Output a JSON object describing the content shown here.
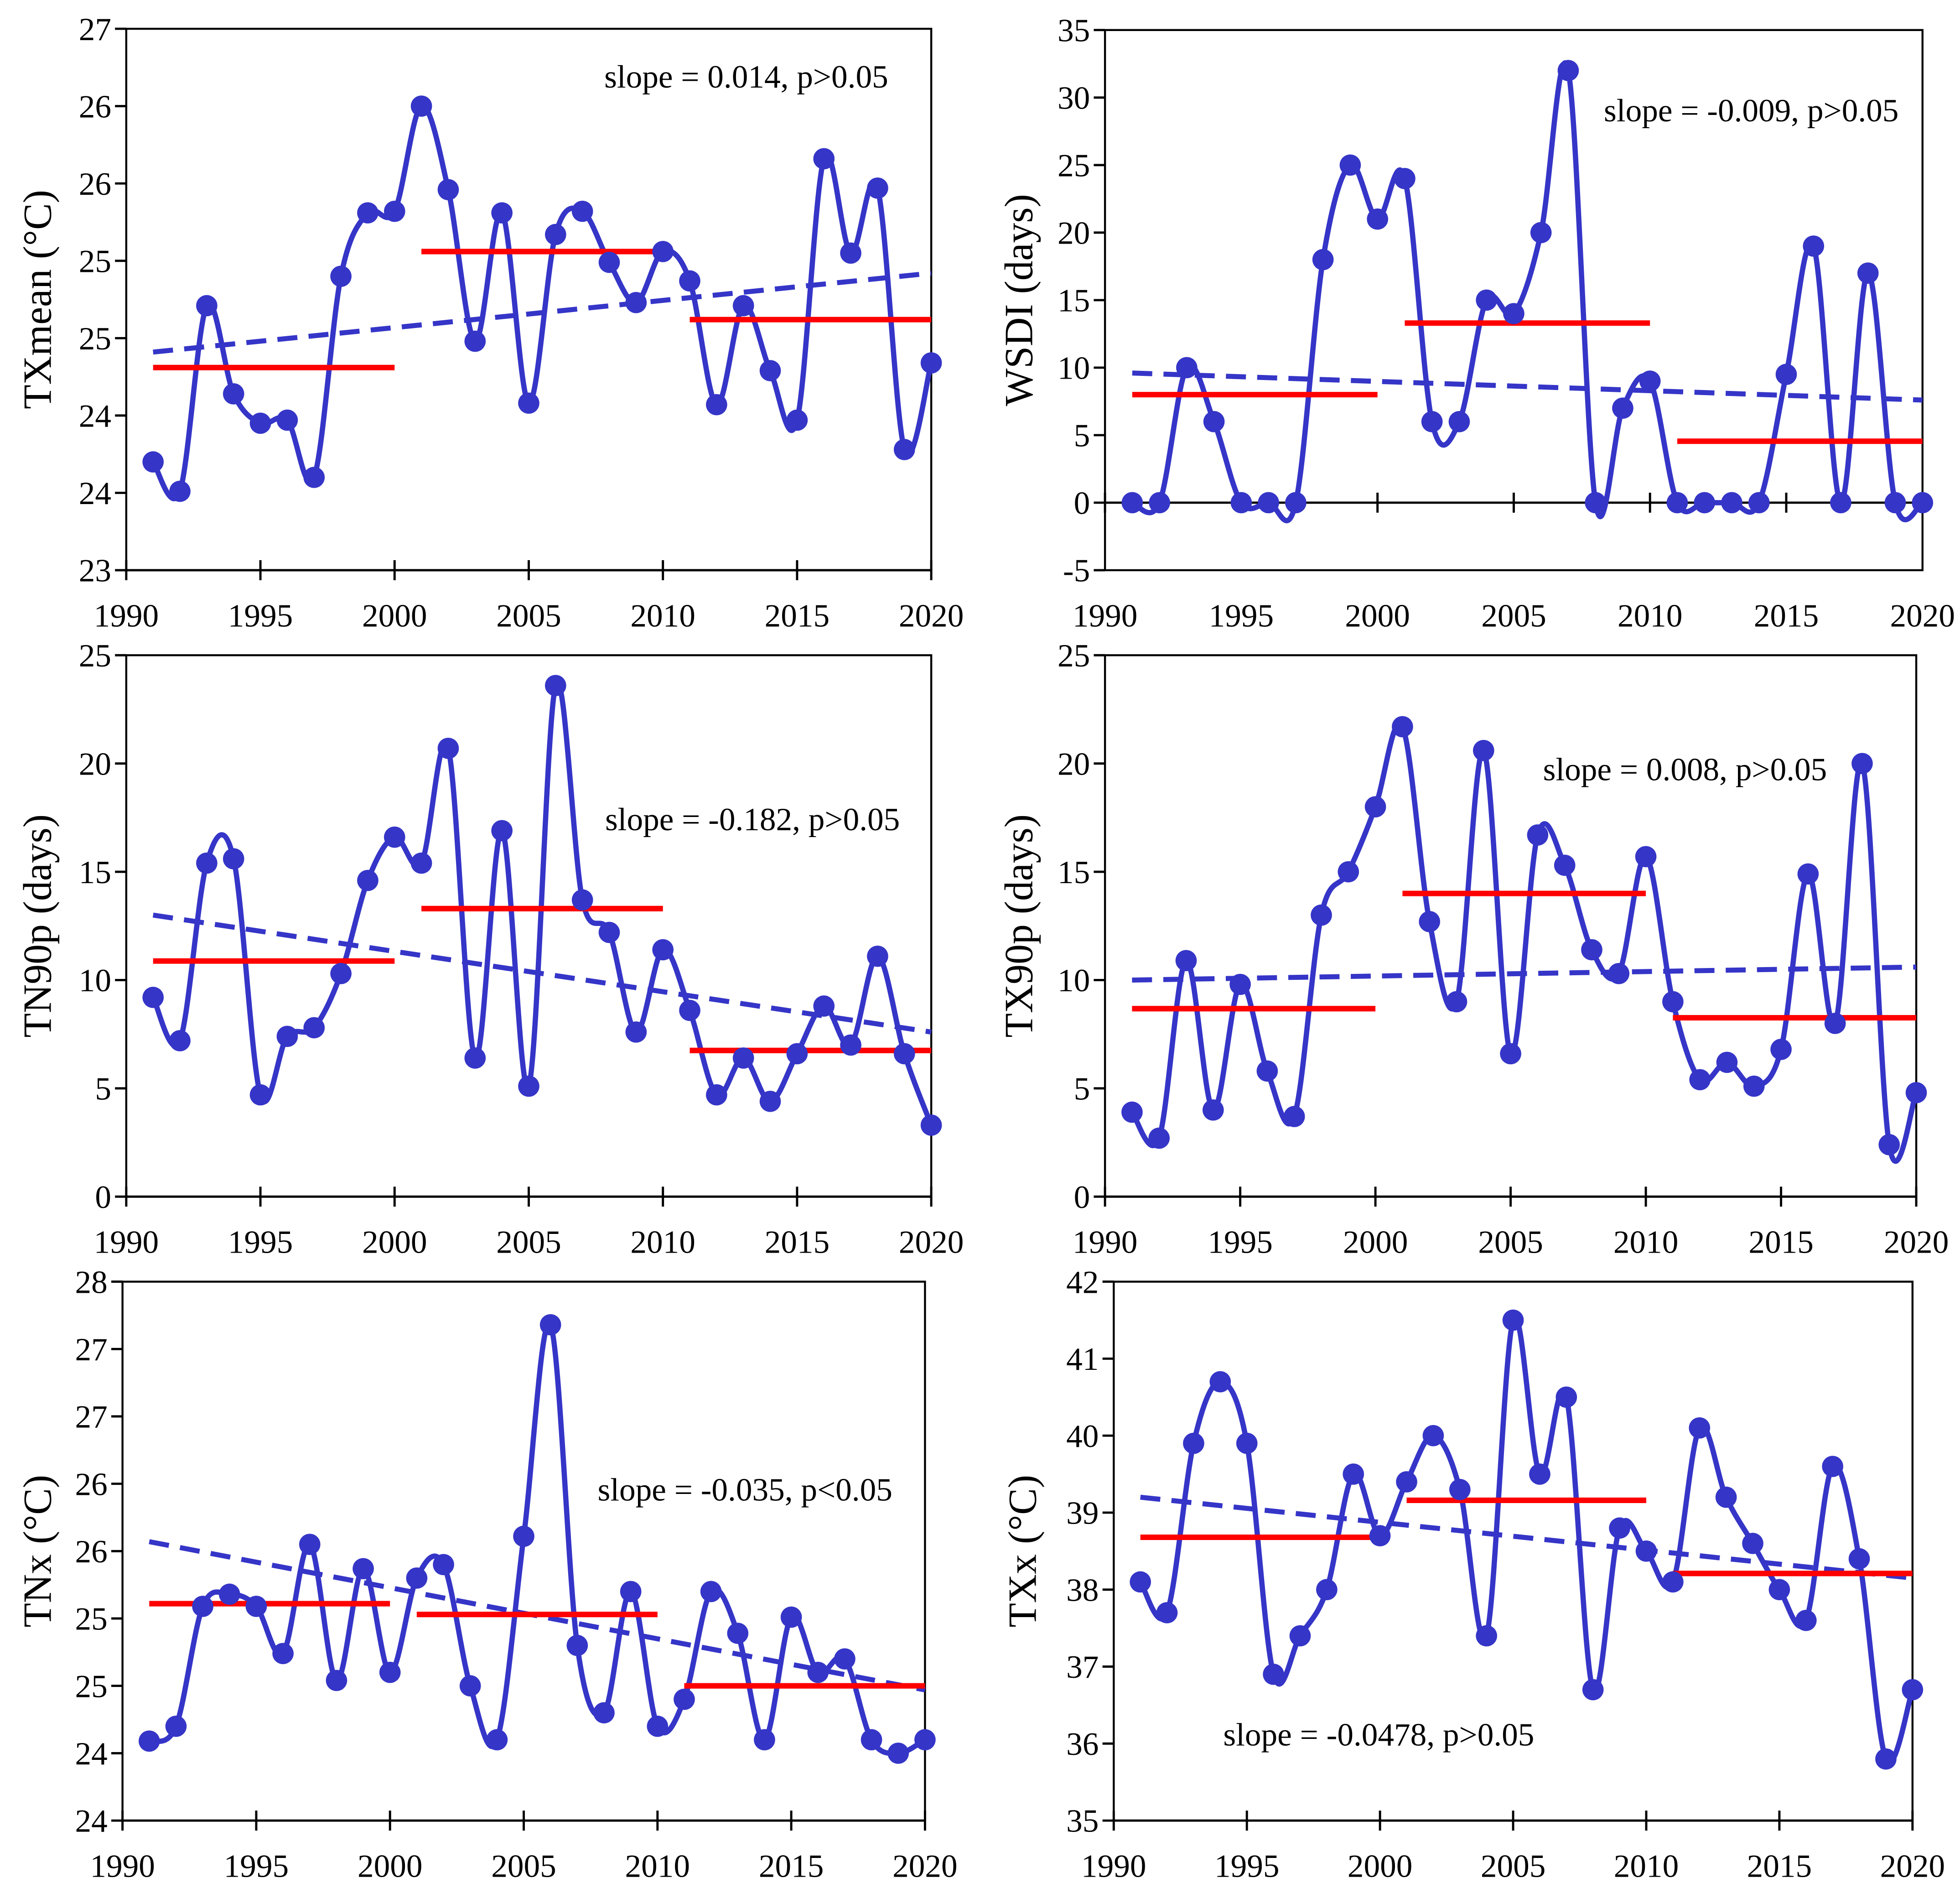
{
  "colors": {
    "series": "#3535c8",
    "trend": "#3535c8",
    "decadal": "#ff0000"
  },
  "chart_data": [
    {
      "type": "line",
      "ylabel": "TXmean (°C)",
      "annotation": "slope = 0.014, p>0.05",
      "xlim": [
        1990,
        2020
      ],
      "xticks": [
        1990,
        1995,
        2000,
        2005,
        2010,
        2015,
        2020
      ],
      "ylim": [
        23,
        26.5
      ],
      "yticks": [
        23,
        23.5,
        24,
        24.5,
        25,
        25.5,
        26,
        26.5
      ],
      "ytick_labels": [
        "23",
        "24",
        "24",
        "25",
        "25",
        "26",
        "26",
        "27"
      ],
      "x": [
        1991,
        1992,
        1993,
        1994,
        1995,
        1996,
        1997,
        1998,
        1999,
        2000,
        2001,
        2002,
        2003,
        2004,
        2005,
        2006,
        2007,
        2008,
        2009,
        2010,
        2011,
        2012,
        2013,
        2014,
        2015,
        2016,
        2017,
        2018,
        2019,
        2020
      ],
      "series": [
        {
          "values": [
            23.7,
            23.51,
            24.71,
            24.14,
            23.95,
            23.97,
            23.6,
            24.9,
            25.31,
            25.32,
            26.0,
            25.46,
            24.48,
            25.31,
            24.08,
            25.17,
            25.32,
            24.99,
            24.73,
            25.06,
            24.87,
            24.07,
            24.71,
            24.29,
            23.97,
            25.66,
            25.05,
            25.47,
            23.78,
            24.34
          ]
        }
      ],
      "trend": {
        "x": [
          1991,
          2020
        ],
        "y": [
          24.41,
          24.92
        ]
      },
      "decadal_means": [
        {
          "x": [
            1991,
            2000
          ],
          "y": 24.31
        },
        {
          "x": [
            2001,
            2010
          ],
          "y": 25.06
        },
        {
          "x": [
            2011,
            2020
          ],
          "y": 24.62
        }
      ]
    },
    {
      "type": "line",
      "ylabel": "WSDI (days)",
      "annotation": "slope = -0.009, p>0.05",
      "xlim": [
        1990,
        2020
      ],
      "xticks": [
        1990,
        1995,
        2000,
        2005,
        2010,
        2015,
        2020
      ],
      "ylim": [
        -5,
        35
      ],
      "yticks": [
        -5,
        0,
        5,
        10,
        15,
        20,
        25,
        30,
        35
      ],
      "ytick_labels": [
        "-5",
        "0",
        "5",
        "10",
        "15",
        "20",
        "25",
        "30",
        "35"
      ],
      "x_axis_crosses": 0,
      "x": [
        1991,
        1992,
        1993,
        1994,
        1995,
        1996,
        1997,
        1998,
        1999,
        2000,
        2001,
        2002,
        2003,
        2004,
        2005,
        2006,
        2007,
        2008,
        2009,
        2010,
        2011,
        2012,
        2013,
        2014,
        2015,
        2016,
        2017,
        2018,
        2019,
        2020
      ],
      "series": [
        {
          "values": [
            0,
            0,
            10,
            6,
            0,
            0,
            0,
            18,
            25,
            21,
            24,
            6,
            6,
            15,
            14,
            20,
            32,
            0,
            7,
            9,
            0,
            0,
            0,
            0,
            9.5,
            19,
            0,
            17,
            0,
            0
          ]
        }
      ],
      "trend": {
        "x": [
          1991,
          2020
        ],
        "y": [
          9.6,
          7.6
        ]
      },
      "decadal_means": [
        {
          "x": [
            1991,
            2000
          ],
          "y": 8.0
        },
        {
          "x": [
            2001,
            2010
          ],
          "y": 13.3
        },
        {
          "x": [
            2011,
            2020
          ],
          "y": 4.55
        }
      ]
    },
    {
      "type": "line",
      "ylabel": "TN90p (days)",
      "annotation": "slope = -0.182, p>0.05",
      "xlim": [
        1990,
        2020
      ],
      "xticks": [
        1990,
        1995,
        2000,
        2005,
        2010,
        2015,
        2020
      ],
      "ylim": [
        0,
        25
      ],
      "yticks": [
        0,
        5,
        10,
        15,
        20,
        25
      ],
      "ytick_labels": [
        "0",
        "5",
        "10",
        "15",
        "20",
        "25"
      ],
      "x": [
        1991,
        1992,
        1993,
        1994,
        1995,
        1996,
        1997,
        1998,
        1999,
        2000,
        2001,
        2002,
        2003,
        2004,
        2005,
        2006,
        2007,
        2008,
        2009,
        2010,
        2011,
        2012,
        2013,
        2014,
        2015,
        2016,
        2017,
        2018,
        2019,
        2020
      ],
      "series": [
        {
          "values": [
            9.2,
            7.2,
            15.4,
            15.6,
            4.7,
            7.4,
            7.8,
            10.3,
            14.6,
            16.6,
            15.4,
            20.7,
            6.4,
            16.9,
            5.1,
            23.6,
            13.7,
            12.2,
            7.6,
            11.4,
            8.6,
            4.7,
            6.4,
            4.4,
            6.6,
            8.8,
            7.0,
            11.1,
            6.6,
            3.3
          ]
        }
      ],
      "trend": {
        "x": [
          1991,
          2020
        ],
        "y": [
          13.0,
          7.6
        ]
      },
      "decadal_means": [
        {
          "x": [
            1991,
            2000
          ],
          "y": 10.88
        },
        {
          "x": [
            2001,
            2010
          ],
          "y": 13.3
        },
        {
          "x": [
            2011,
            2020
          ],
          "y": 6.75
        }
      ]
    },
    {
      "type": "line",
      "ylabel": "TX90p (days)",
      "annotation": "slope = 0.008, p>0.05",
      "xlim": [
        1990,
        2020
      ],
      "xticks": [
        1990,
        1995,
        2000,
        2005,
        2010,
        2015,
        2020
      ],
      "ylim": [
        0,
        25
      ],
      "yticks": [
        0,
        5,
        10,
        15,
        20,
        25
      ],
      "ytick_labels": [
        "0",
        "5",
        "10",
        "15",
        "20",
        "25"
      ],
      "x": [
        1991,
        1992,
        1993,
        1994,
        1995,
        1996,
        1997,
        1998,
        1999,
        2000,
        2001,
        2002,
        2003,
        2004,
        2005,
        2006,
        2007,
        2008,
        2009,
        2010,
        2011,
        2012,
        2013,
        2014,
        2015,
        2016,
        2017,
        2018,
        2019,
        2020
      ],
      "series": [
        {
          "values": [
            3.9,
            2.7,
            10.9,
            4.0,
            9.8,
            5.8,
            3.7,
            13.0,
            15.0,
            18.0,
            21.7,
            12.7,
            9.0,
            20.6,
            6.6,
            16.7,
            15.3,
            11.4,
            10.3,
            15.7,
            9.0,
            5.4,
            6.2,
            5.1,
            6.8,
            14.9,
            8.0,
            20.0,
            2.4,
            4.8
          ]
        }
      ],
      "trend": {
        "x": [
          1991,
          2020
        ],
        "y": [
          10.0,
          10.6
        ]
      },
      "decadal_means": [
        {
          "x": [
            1991,
            2000
          ],
          "y": 8.68
        },
        {
          "x": [
            2001,
            2010
          ],
          "y": 14.0
        },
        {
          "x": [
            2011,
            2020
          ],
          "y": 8.26
        }
      ]
    },
    {
      "type": "line",
      "ylabel": "TNx (°C)",
      "annotation": "slope = -0.035, p<0.05",
      "xlim": [
        1990,
        2020
      ],
      "xticks": [
        1990,
        1995,
        2000,
        2005,
        2010,
        2015,
        2020
      ],
      "ylim": [
        23.5,
        27.5
      ],
      "yticks": [
        23.5,
        24,
        24.5,
        25,
        25.5,
        26,
        26.5,
        27,
        27.5
      ],
      "ytick_labels": [
        "24",
        "24",
        "25",
        "25",
        "26",
        "26",
        "27",
        "27",
        "28"
      ],
      "x": [
        1991,
        1992,
        1993,
        1994,
        1995,
        1996,
        1997,
        1998,
        1999,
        2000,
        2001,
        2002,
        2003,
        2004,
        2005,
        2006,
        2007,
        2008,
        2009,
        2010,
        2011,
        2012,
        2013,
        2014,
        2015,
        2016,
        2017,
        2018,
        2019,
        2020
      ],
      "series": [
        {
          "values": [
            24.09,
            24.2,
            25.09,
            25.18,
            25.09,
            24.74,
            25.55,
            24.54,
            25.37,
            24.6,
            25.3,
            25.4,
            24.5,
            24.1,
            25.61,
            27.18,
            24.8,
            24.3,
            25.2,
            24.2,
            24.4,
            25.2,
            24.89,
            24.1,
            25.01,
            24.6,
            24.7,
            24.1,
            24.0,
            24.1
          ]
        }
      ],
      "trend": {
        "x": [
          1991,
          2020
        ],
        "y": [
          25.57,
          24.47
        ]
      },
      "decadal_means": [
        {
          "x": [
            1991,
            2000
          ],
          "y": 25.11
        },
        {
          "x": [
            2001,
            2010
          ],
          "y": 25.03
        },
        {
          "x": [
            2011,
            2020
          ],
          "y": 24.5
        }
      ]
    },
    {
      "type": "line",
      "ylabel": "TXx (°C)",
      "annotation": "slope = -0.0478, p>0.05",
      "xlim": [
        1990,
        2020
      ],
      "xticks": [
        1990,
        1995,
        2000,
        2005,
        2010,
        2015,
        2020
      ],
      "ylim": [
        35,
        42
      ],
      "yticks": [
        35,
        36,
        37,
        38,
        39,
        40,
        41,
        42
      ],
      "ytick_labels": [
        "35",
        "36",
        "37",
        "38",
        "39",
        "40",
        "41",
        "42"
      ],
      "x": [
        1991,
        1992,
        1993,
        1994,
        1995,
        1996,
        1997,
        1998,
        1999,
        2000,
        2001,
        2002,
        2003,
        2004,
        2005,
        2006,
        2007,
        2008,
        2009,
        2010,
        2011,
        2012,
        2013,
        2014,
        2015,
        2016,
        2017,
        2018,
        2019,
        2020
      ],
      "series": [
        {
          "values": [
            38.1,
            37.7,
            39.9,
            40.7,
            39.9,
            36.9,
            37.4,
            38.0,
            39.5,
            38.7,
            39.4,
            40.0,
            39.3,
            37.4,
            41.5,
            39.5,
            40.5,
            36.7,
            38.8,
            38.5,
            38.1,
            40.1,
            39.2,
            38.6,
            38.0,
            37.6,
            39.6,
            38.4,
            35.8,
            36.7
          ]
        }
      ],
      "trend": {
        "x": [
          1991,
          2020
        ],
        "y": [
          39.2,
          38.15
        ]
      },
      "decadal_means": [
        {
          "x": [
            1991,
            2000
          ],
          "y": 38.68
        },
        {
          "x": [
            2001,
            2010
          ],
          "y": 39.16
        },
        {
          "x": [
            2011,
            2020
          ],
          "y": 38.21
        }
      ]
    }
  ]
}
